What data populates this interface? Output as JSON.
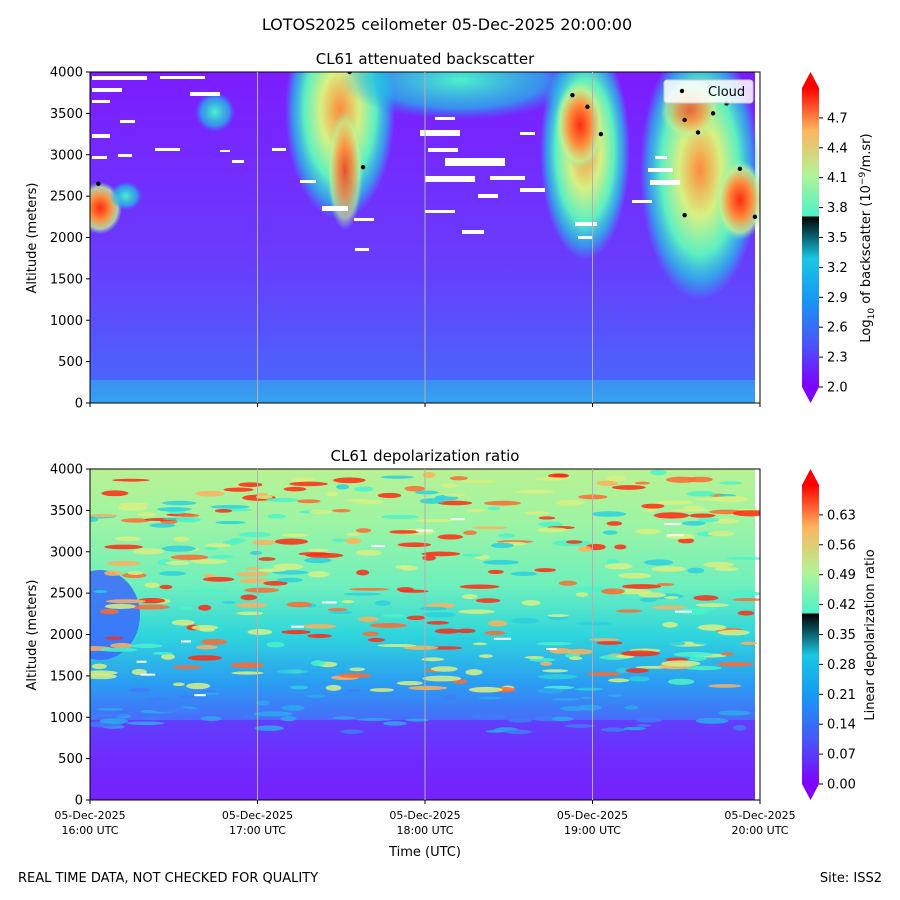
{
  "figure": {
    "title": "LOTOS2025 ceilometer 05-Dec-2025 20:00:00",
    "footer_left": "REAL TIME DATA, NOT CHECKED FOR QUALITY",
    "footer_right": "Site: ISS2"
  },
  "chart_data": [
    {
      "type": "heatmap",
      "title": "CL61 attenuated backscatter",
      "xlabel": "",
      "ylabel": "Altitude (meters)",
      "ylim": [
        0,
        4000
      ],
      "yticks": [
        0,
        500,
        1000,
        1500,
        2000,
        2500,
        3000,
        3500,
        4000
      ],
      "xlim_hours_utc": [
        16,
        20
      ],
      "colorbar": {
        "label_prefix": "Log",
        "label_sub": "10",
        "label_mid": " of backscatter (10",
        "label_sup": "−9",
        "label_suffix": "/m.sr)",
        "range": [
          2.0,
          5.0
        ],
        "ticks": [
          "2.0",
          "2.3",
          "2.6",
          "2.9",
          "3.2",
          "3.5",
          "3.8",
          "4.1",
          "4.4",
          "4.7"
        ],
        "tick_values": [
          2.0,
          2.3,
          2.6,
          2.9,
          3.2,
          3.5,
          3.8,
          4.1,
          4.4,
          4.7
        ],
        "colormap": "rainbow"
      },
      "legend": {
        "label": "Cloud",
        "position": "top-right"
      },
      "cloud_points": [
        {
          "t": 16.05,
          "alt": 2650
        },
        {
          "t": 17.55,
          "alt": 4000
        },
        {
          "t": 17.63,
          "alt": 2850
        },
        {
          "t": 18.88,
          "alt": 3720
        },
        {
          "t": 18.97,
          "alt": 3580
        },
        {
          "t": 19.05,
          "alt": 3250
        },
        {
          "t": 19.55,
          "alt": 3420
        },
        {
          "t": 19.55,
          "alt": 2270
        },
        {
          "t": 19.63,
          "alt": 3270
        },
        {
          "t": 19.72,
          "alt": 3500
        },
        {
          "t": 19.8,
          "alt": 3620
        },
        {
          "t": 19.88,
          "alt": 2830
        },
        {
          "t": 19.97,
          "alt": 2250
        }
      ]
    },
    {
      "type": "heatmap",
      "title": "CL61 depolarization ratio",
      "xlabel": "Time (UTC)",
      "ylabel": "Altitude (meters)",
      "ylim": [
        0,
        4000
      ],
      "yticks": [
        0,
        500,
        1000,
        1500,
        2000,
        2500,
        3000,
        3500,
        4000
      ],
      "xticks": [
        {
          "date": "05-Dec-2025",
          "time": "16:00 UTC"
        },
        {
          "date": "05-Dec-2025",
          "time": "17:00 UTC"
        },
        {
          "date": "05-Dec-2025",
          "time": "18:00 UTC"
        },
        {
          "date": "05-Dec-2025",
          "time": "19:00 UTC"
        },
        {
          "date": "05-Dec-2025",
          "time": "20:00 UTC"
        }
      ],
      "colorbar": {
        "label": "Linear depolarization ratio",
        "range": [
          0.0,
          0.7
        ],
        "ticks": [
          "0.00",
          "0.07",
          "0.14",
          "0.21",
          "0.28",
          "0.35",
          "0.42",
          "0.49",
          "0.56",
          "0.63"
        ],
        "tick_values": [
          0.0,
          0.07,
          0.14,
          0.21,
          0.28,
          0.35,
          0.42,
          0.49,
          0.56,
          0.63
        ],
        "colormap": "rainbow"
      }
    }
  ]
}
